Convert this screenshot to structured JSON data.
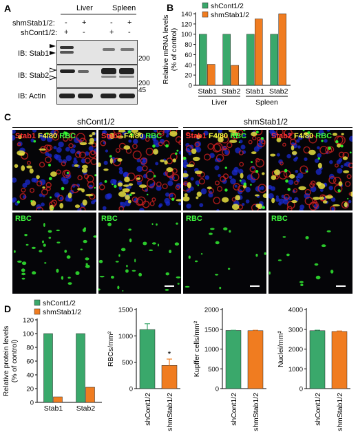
{
  "panel_A": {
    "letter": "A",
    "tissues": [
      "Liver",
      "Spleen"
    ],
    "row_labels": [
      "shmStab1/2:",
      "shCont1/2:"
    ],
    "shm_signs": [
      "-",
      "+",
      "-",
      "+"
    ],
    "shc_signs": [
      "+",
      "-",
      "+",
      "-"
    ],
    "blots": [
      {
        "label": "IB: Stab1",
        "marker": "200"
      },
      {
        "label": "IB: Stab2",
        "marker": "200"
      },
      {
        "label": "IB: Actin",
        "marker": "45"
      }
    ]
  },
  "panel_C": {
    "letter": "C",
    "groups": [
      "shCont1/2",
      "shmStab1/2"
    ],
    "top_labels": [
      {
        "parts": [
          {
            "t": "Stab1 ",
            "c": "#ff3030"
          },
          {
            "t": "F4/80 ",
            "c": "#ffff40"
          },
          {
            "t": "RBC",
            "c": "#40ff40"
          }
        ]
      },
      {
        "parts": [
          {
            "t": "Stab2 ",
            "c": "#ff3030"
          },
          {
            "t": "F4/80 ",
            "c": "#ffff40"
          },
          {
            "t": "RBC",
            "c": "#40ff40"
          }
        ]
      },
      {
        "parts": [
          {
            "t": "Stab1 ",
            "c": "#ff3030"
          },
          {
            "t": "F4/80 ",
            "c": "#ffff40"
          },
          {
            "t": "RBC",
            "c": "#40ff40"
          }
        ]
      },
      {
        "parts": [
          {
            "t": "Stab2 ",
            "c": "#ff3030"
          },
          {
            "t": "F4/80 ",
            "c": "#ffff40"
          },
          {
            "t": "RBC",
            "c": "#40ff40"
          }
        ]
      }
    ],
    "bottom_label": "RBC"
  },
  "chart_data": [
    {
      "id": "B",
      "letter": "B",
      "type": "bar",
      "ylabel": "Relative mRNA levels\n(% of control)",
      "ylim": [
        0,
        140
      ],
      "yticks": [
        0,
        20,
        40,
        60,
        80,
        100,
        120,
        140
      ],
      "categories": [
        "Stab1",
        "Stab2",
        "Stab1",
        "Stab2"
      ],
      "groups": [
        "Liver",
        "Spleen"
      ],
      "legend": [
        "shCont1/2",
        "shmStab1/2"
      ],
      "colors": [
        "#3aa86b",
        "#f07c20"
      ],
      "series": [
        {
          "name": "shCont1/2",
          "values": [
            100,
            100,
            100,
            100
          ]
        },
        {
          "name": "shmStab1/2",
          "values": [
            41,
            39,
            130,
            140
          ]
        }
      ]
    },
    {
      "id": "D1",
      "letter": "D",
      "type": "bar",
      "ylabel": "Relative protein levels\n(% of control)",
      "ylim": [
        0,
        120
      ],
      "yticks": [
        0,
        20,
        40,
        60,
        80,
        100,
        120
      ],
      "categories": [
        "Stab1",
        "Stab2"
      ],
      "legend": [
        "shCont1/2",
        "shmStab1/2"
      ],
      "colors": [
        "#3aa86b",
        "#f07c20"
      ],
      "series": [
        {
          "name": "shCont1/2",
          "values": [
            100,
            100
          ]
        },
        {
          "name": "shmStab1/2",
          "values": [
            8,
            22
          ]
        }
      ]
    },
    {
      "id": "D2",
      "type": "bar",
      "ylabel": "RBCs/mm²",
      "ylim": [
        0,
        1500
      ],
      "yticks": [
        0,
        500,
        1000,
        1500
      ],
      "categories": [
        "shCont1/2",
        "shmStab1/2"
      ],
      "colors": [
        "#3aa86b",
        "#f07c20"
      ],
      "values": [
        1120,
        440
      ],
      "errors": [
        110,
        120
      ],
      "annotation": "*"
    },
    {
      "id": "D3",
      "type": "bar",
      "ylabel": "Kupffer cells/mm²",
      "ylim": [
        0,
        2000
      ],
      "yticks": [
        0,
        500,
        1000,
        1500,
        2000
      ],
      "categories": [
        "shCont1/2",
        "shmStab1/2"
      ],
      "colors": [
        "#3aa86b",
        "#f07c20"
      ],
      "values": [
        1470,
        1465
      ],
      "errors": [
        5,
        10
      ]
    },
    {
      "id": "D4",
      "type": "bar",
      "ylabel": "Nuclei/mm²",
      "ylim": [
        0,
        4000
      ],
      "yticks": [
        0,
        1000,
        2000,
        3000,
        4000
      ],
      "categories": [
        "shCont1/2",
        "shmStab1/2"
      ],
      "colors": [
        "#3aa86b",
        "#f07c20"
      ],
      "values": [
        2930,
        2890
      ],
      "errors": [
        25,
        25
      ]
    }
  ]
}
